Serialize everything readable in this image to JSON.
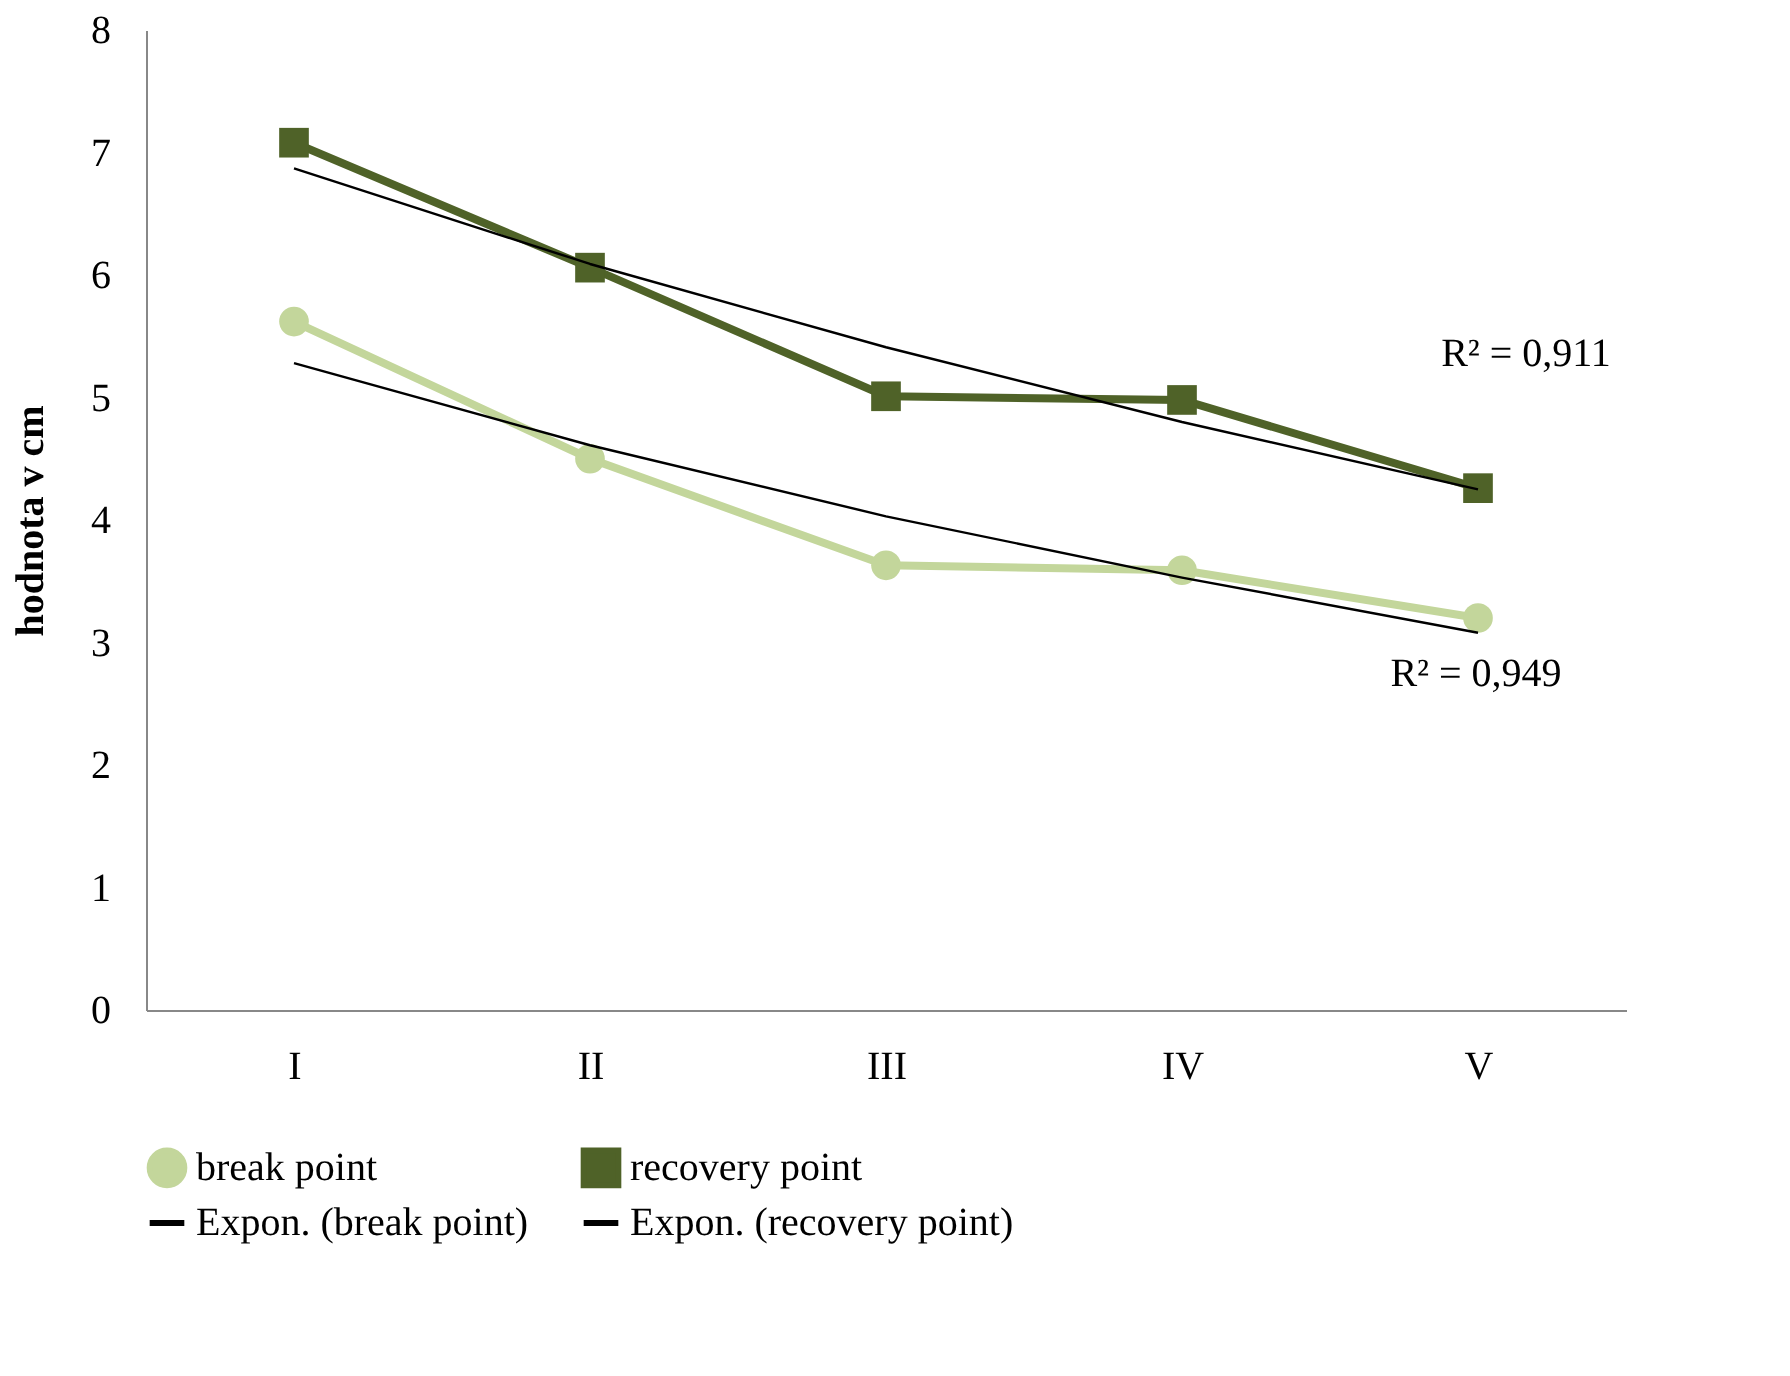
{
  "chart_data": {
    "type": "line",
    "ylabel": "hodnota v cm",
    "categories": [
      "I",
      "II",
      "III",
      "IV",
      "V"
    ],
    "series": [
      {
        "name": "break point",
        "color": "#c3d69b",
        "marker": "circle",
        "values": [
          5.62,
          4.5,
          3.63,
          3.59,
          3.2
        ]
      },
      {
        "name": "recovery point",
        "color": "#4f6228",
        "marker": "square",
        "values": [
          7.08,
          6.06,
          5.01,
          4.98,
          4.26
        ]
      },
      {
        "name": "Expon. (break point)",
        "color": "#000000",
        "marker": "none",
        "values": [
          5.28,
          4.61,
          4.03,
          3.53,
          3.08
        ]
      },
      {
        "name": "Expon. (recovery point)",
        "color": "#000000",
        "marker": "none",
        "values": [
          6.87,
          6.09,
          5.41,
          4.8,
          4.25
        ]
      }
    ],
    "ylim": [
      0,
      8
    ],
    "yticks": [
      0,
      1,
      2,
      3,
      4,
      5,
      6,
      7,
      8
    ],
    "annotations": [
      "R² = 0,911",
      "R² = 0,949"
    ],
    "grid": false,
    "legend": "bottom",
    "line_style": "solid"
  }
}
